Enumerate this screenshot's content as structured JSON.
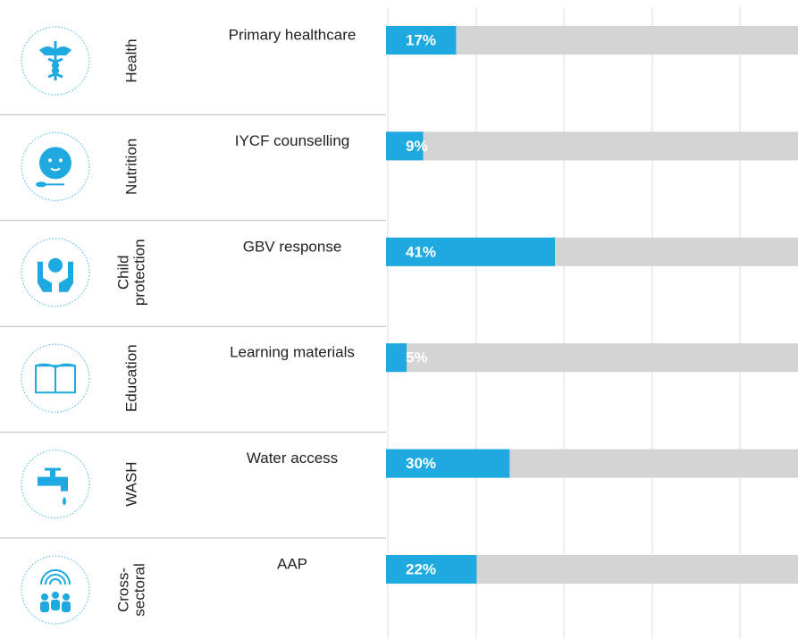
{
  "chart_data": {
    "type": "bar",
    "orientation": "horizontal",
    "groups": [
      [
        "Health"
      ],
      [
        "Nutrition"
      ],
      [
        "Child",
        "protection"
      ],
      [
        "Education"
      ],
      [
        "WASH"
      ],
      [
        "Cross-",
        "sectoral"
      ]
    ],
    "categories": [
      "Primary healthcare",
      "IYCF counselling",
      "GBV response",
      "Learning materials",
      "Water access",
      "AAP"
    ],
    "values": [
      17,
      9,
      41,
      5,
      30,
      22
    ],
    "value_labels": [
      "17%",
      "9%",
      "41%",
      "5%",
      "30%",
      "22%"
    ],
    "color": "#1eaae1",
    "track_color": "#d4d4d4",
    "xlim": [
      0,
      100
    ]
  }
}
